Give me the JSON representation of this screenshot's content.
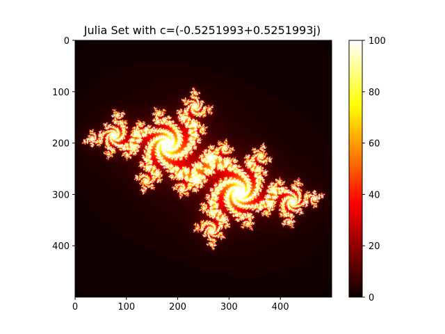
{
  "chart_data": {
    "type": "heatmap",
    "title": "Julia Set with c=(-0.5251993+0.5251993j)",
    "xlabel": "",
    "ylabel": "",
    "image_size": [
      500,
      500
    ],
    "xlim": [
      0,
      500
    ],
    "ylim": [
      500,
      0
    ],
    "x_ticks": [
      0,
      100,
      200,
      300,
      400
    ],
    "y_ticks": [
      0,
      100,
      200,
      300,
      400
    ],
    "julia_c": {
      "re": -0.5251993,
      "im": 0.5251993
    },
    "max_iterations": 100,
    "colormap": "hot",
    "colorbar": {
      "min": 0,
      "max": 100,
      "ticks": [
        0,
        20,
        40,
        60,
        80,
        100
      ]
    },
    "grid": false
  }
}
